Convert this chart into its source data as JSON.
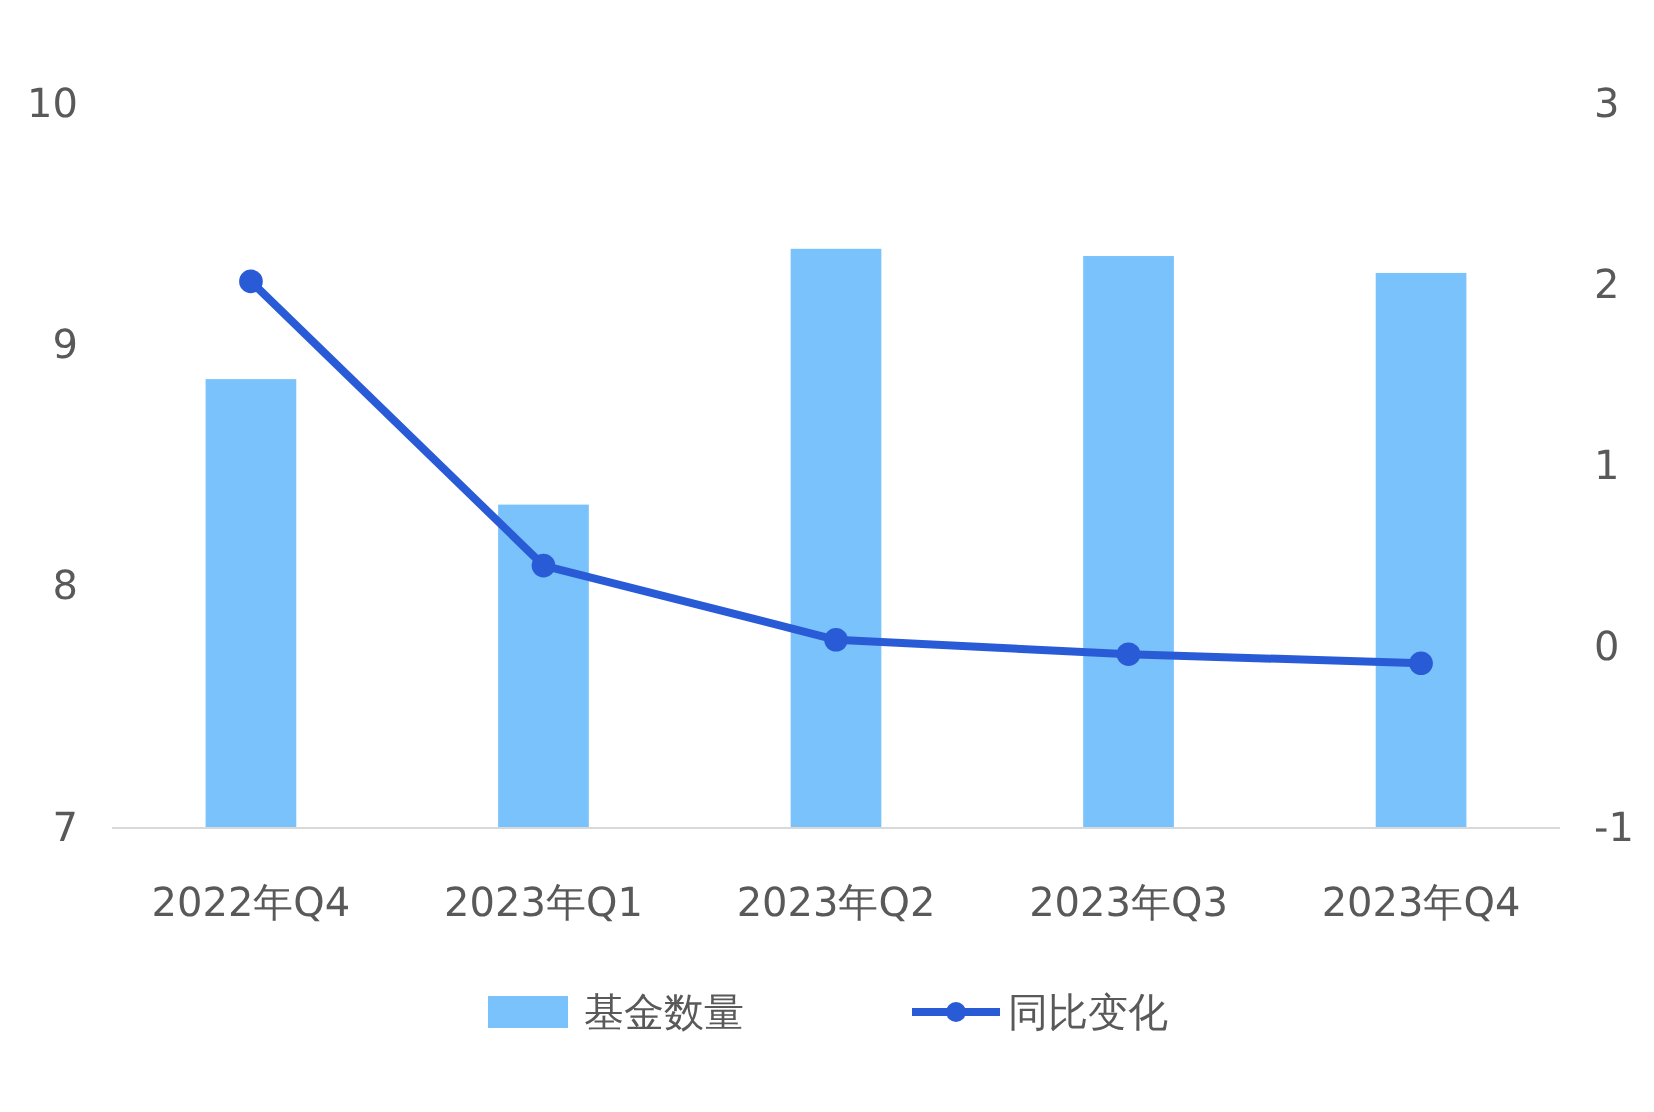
{
  "chart_data": {
    "type": "bar",
    "categories": [
      "2022年Q4",
      "2023年Q1",
      "2023年Q2",
      "2023年Q3",
      "2023年Q4"
    ],
    "series": [
      {
        "name": "基金数量",
        "type": "bar",
        "color": "#79c2fb",
        "values": [
          8.86,
          8.34,
          9.4,
          9.37,
          9.3
        ]
      },
      {
        "name": "同比变化",
        "type": "line",
        "axis": "y2",
        "color": "#2a5bd7",
        "values": [
          2.02,
          0.45,
          0.04,
          -0.04,
          -0.09
        ]
      }
    ],
    "ylim": [
      7,
      10
    ],
    "yticks": [
      7,
      8,
      9,
      10
    ],
    "y2lim": [
      -1,
      3
    ],
    "y2ticks": [
      -1,
      0,
      1,
      2,
      3
    ],
    "legend": "bottom",
    "marker": "circle",
    "grid": false
  }
}
